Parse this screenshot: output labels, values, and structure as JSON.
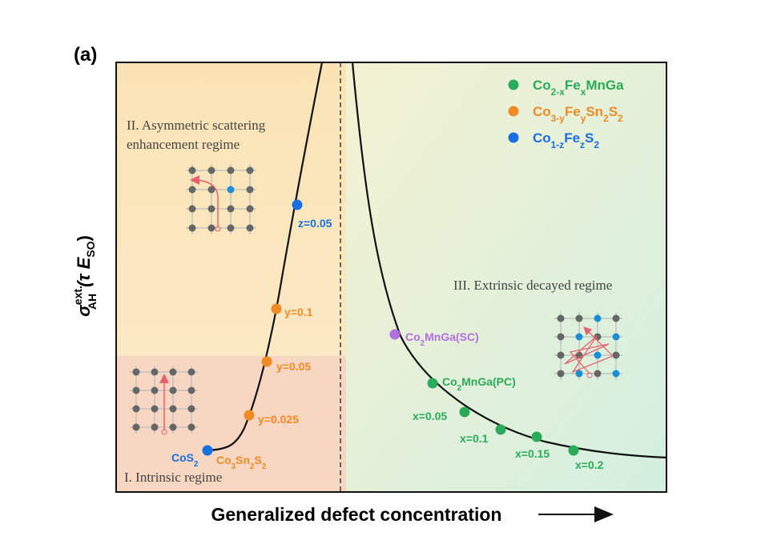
{
  "panel_label": "(a)",
  "y_axis_label": {
    "symbol": "σ",
    "superscript": "ext.",
    "subscript": "AH",
    "unit_open": "(τ E",
    "unit_subscript": "SO",
    "unit_close": ")"
  },
  "x_axis_label": "Generalized defect concentration",
  "legend": [
    {
      "label": [
        "Co",
        "2-x",
        "Fe",
        "x",
        "MnGa"
      ]
    },
    {
      "label": [
        "Co",
        "3-y",
        "Fe",
        "y",
        "Sn",
        "2",
        "S",
        "2"
      ]
    },
    {
      "label": [
        "Co",
        "1-z",
        "Fe",
        "z",
        "S",
        "2"
      ]
    }
  ],
  "regions": {
    "asymmetric": [
      "II. Asymmetric scattering",
      "enhancement regime"
    ],
    "extrinsic": "III. Extrinsic decayed regime",
    "intrinsic": "I. Intrinsic regime"
  },
  "point_labels": [
    [
      "z=0.05"
    ],
    [
      "y=0.1"
    ],
    [
      "y=0.05"
    ],
    [
      "y=0.025"
    ],
    [
      "CoS",
      "2"
    ],
    [
      "Co",
      "3",
      "Sn",
      "2",
      "S",
      "2"
    ],
    [
      "Co",
      "2",
      "MnGa(SC)"
    ],
    [
      "Co",
      "2",
      "MnGa(PC)"
    ],
    [
      "x=0.05"
    ],
    [
      "x=0.1"
    ],
    [
      "x=0.15"
    ],
    [
      "x=0.2"
    ]
  ]
}
